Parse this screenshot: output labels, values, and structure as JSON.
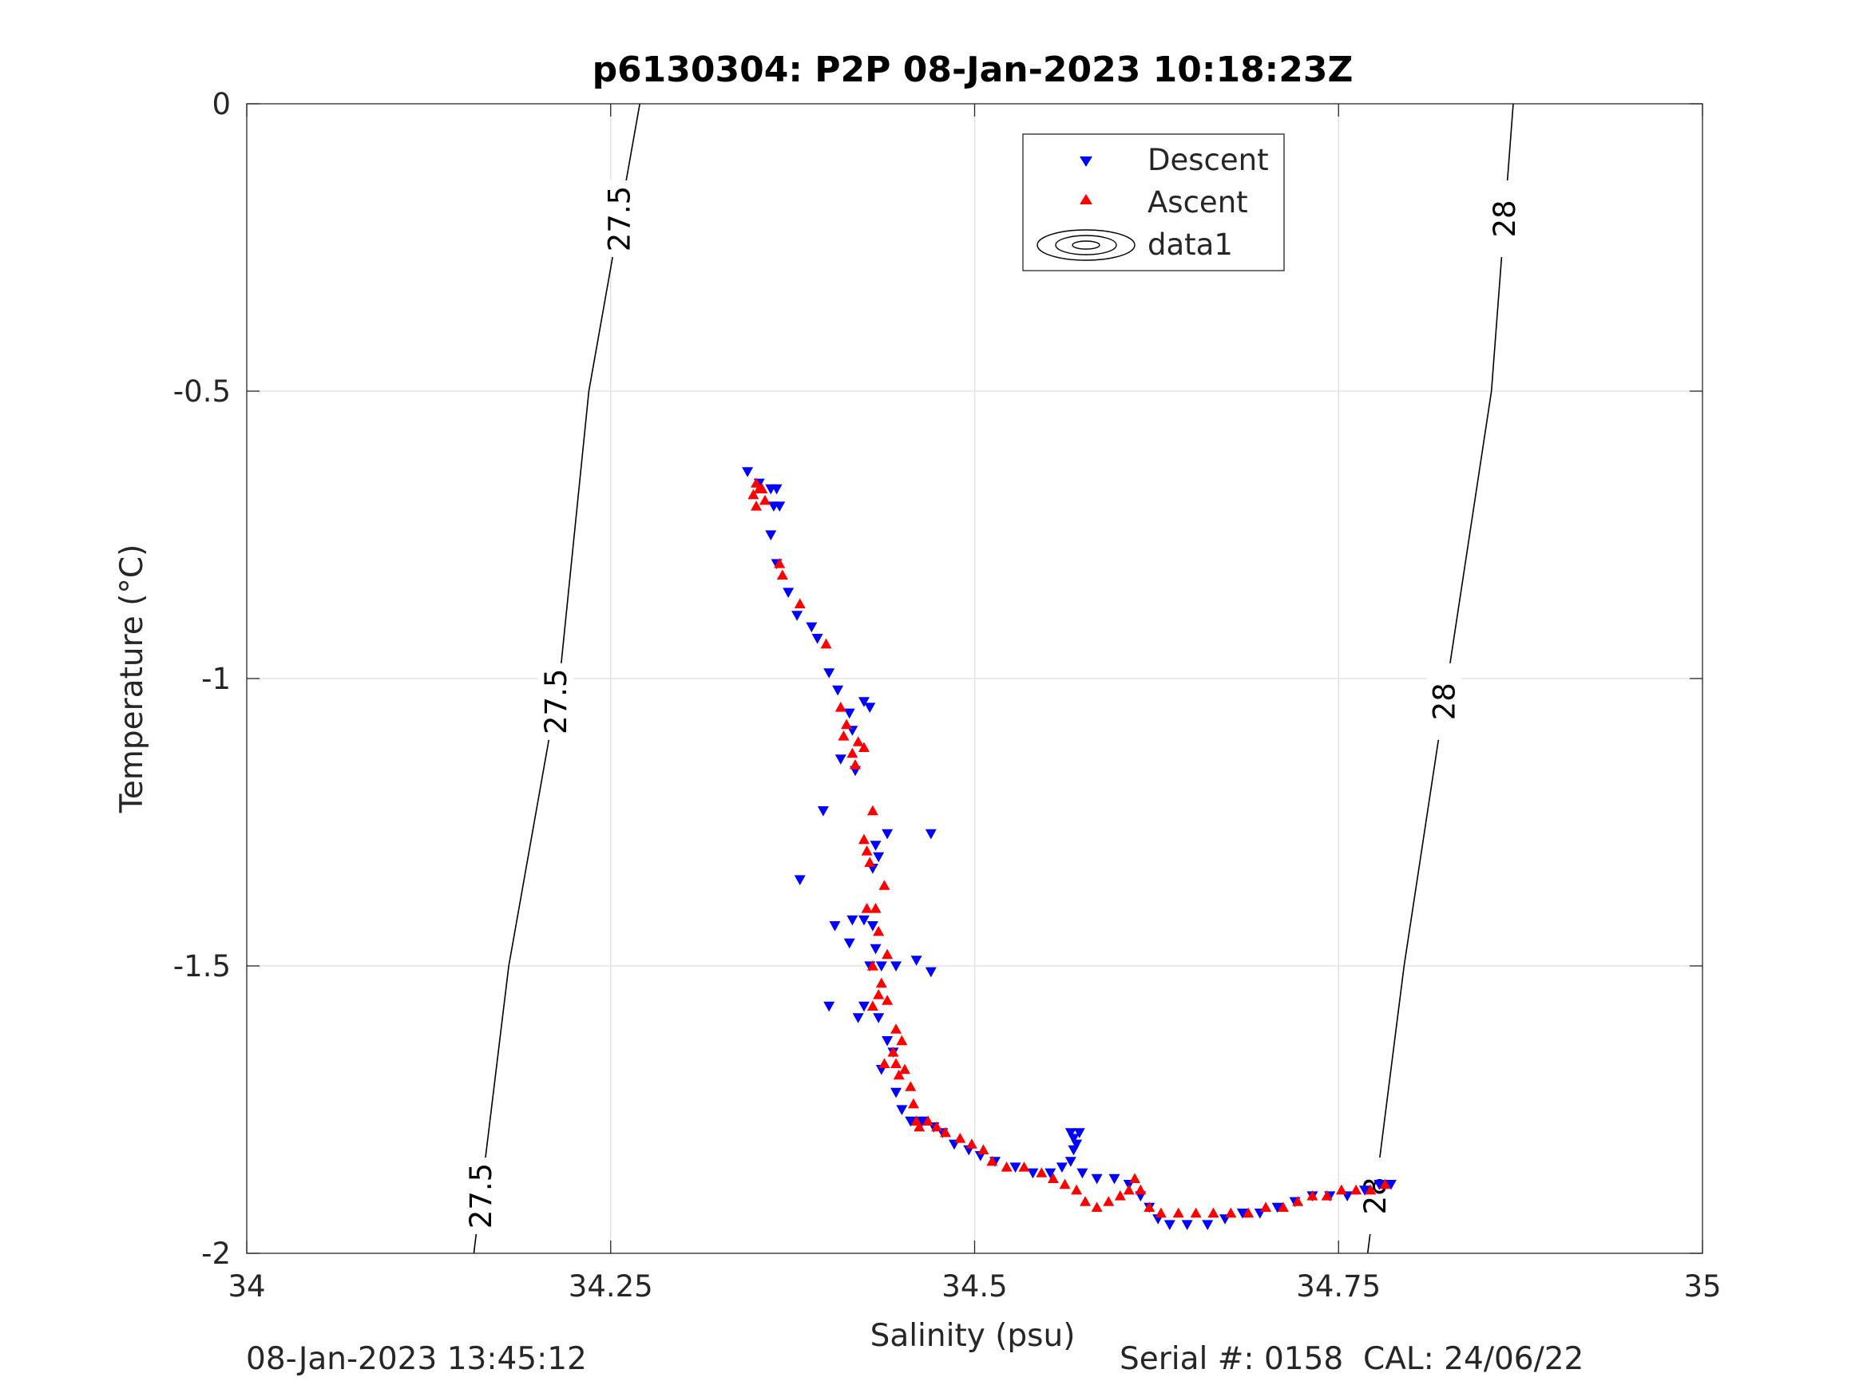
{
  "chart_data": {
    "type": "scatter",
    "title": "p6130304: P2P 08-Jan-2023 10:18:23Z",
    "xlabel": "Salinity (psu)",
    "ylabel": "Temperature (°C)",
    "xlim": [
      34,
      35
    ],
    "ylim": [
      -2,
      0
    ],
    "xticks": [
      34,
      34.25,
      34.5,
      34.75,
      35
    ],
    "xtick_labels": [
      "34",
      "34.25",
      "34.5",
      "34.75",
      "35"
    ],
    "yticks": [
      -2,
      -1.5,
      -1,
      -0.5,
      0
    ],
    "ytick_labels": [
      "-2",
      "-1.5",
      "-1",
      "-0.5",
      "0"
    ],
    "grid": true,
    "legend_position": "top-center",
    "legend": [
      {
        "label": "Descent",
        "marker": "triangle-down",
        "color": "#0000ff"
      },
      {
        "label": "Ascent",
        "marker": "triangle-up",
        "color": "#ff0000"
      },
      {
        "label": "data1",
        "marker": "contour-ellipses",
        "color": "#000000"
      }
    ],
    "contours": [
      {
        "label": "27.5",
        "points": [
          [
            34.156,
            -2
          ],
          [
            34.18,
            -1.5
          ],
          [
            34.215,
            -1
          ],
          [
            34.235,
            -0.5
          ],
          [
            34.27,
            0
          ]
        ]
      },
      {
        "label": "28",
        "points": [
          [
            34.77,
            -2
          ],
          [
            34.795,
            -1.5
          ],
          [
            34.825,
            -1
          ],
          [
            34.855,
            -0.5
          ],
          [
            34.87,
            0
          ]
        ]
      }
    ],
    "series": [
      {
        "name": "Descent",
        "marker": "triangle-down",
        "color": "#0000ff",
        "points": [
          [
            34.344,
            -0.64
          ],
          [
            34.352,
            -0.66
          ],
          [
            34.36,
            -0.67
          ],
          [
            34.364,
            -0.67
          ],
          [
            34.362,
            -0.7
          ],
          [
            34.366,
            -0.7
          ],
          [
            34.36,
            -0.75
          ],
          [
            34.364,
            -0.8
          ],
          [
            34.372,
            -0.85
          ],
          [
            34.378,
            -0.89
          ],
          [
            34.388,
            -0.91
          ],
          [
            34.392,
            -0.93
          ],
          [
            34.4,
            -0.99
          ],
          [
            34.406,
            -1.02
          ],
          [
            34.414,
            -1.06
          ],
          [
            34.424,
            -1.04
          ],
          [
            34.428,
            -1.05
          ],
          [
            34.416,
            -1.09
          ],
          [
            34.408,
            -1.14
          ],
          [
            34.418,
            -1.16
          ],
          [
            34.396,
            -1.23
          ],
          [
            34.44,
            -1.27
          ],
          [
            34.47,
            -1.27
          ],
          [
            34.432,
            -1.29
          ],
          [
            34.434,
            -1.31
          ],
          [
            34.43,
            -1.33
          ],
          [
            34.38,
            -1.35
          ],
          [
            34.416,
            -1.42
          ],
          [
            34.424,
            -1.42
          ],
          [
            34.404,
            -1.43
          ],
          [
            34.43,
            -1.43
          ],
          [
            34.414,
            -1.46
          ],
          [
            34.432,
            -1.47
          ],
          [
            34.428,
            -1.5
          ],
          [
            34.436,
            -1.5
          ],
          [
            34.446,
            -1.5
          ],
          [
            34.46,
            -1.49
          ],
          [
            34.47,
            -1.51
          ],
          [
            34.4,
            -1.57
          ],
          [
            34.424,
            -1.57
          ],
          [
            34.42,
            -1.59
          ],
          [
            34.434,
            -1.59
          ],
          [
            34.44,
            -1.63
          ],
          [
            34.444,
            -1.65
          ],
          [
            34.436,
            -1.68
          ],
          [
            34.446,
            -1.72
          ],
          [
            34.45,
            -1.75
          ],
          [
            34.456,
            -1.77
          ],
          [
            34.464,
            -1.77
          ],
          [
            34.472,
            -1.78
          ],
          [
            34.478,
            -1.79
          ],
          [
            34.486,
            -1.81
          ],
          [
            34.496,
            -1.82
          ],
          [
            34.504,
            -1.83
          ],
          [
            34.514,
            -1.84
          ],
          [
            34.528,
            -1.85
          ],
          [
            34.54,
            -1.86
          ],
          [
            34.552,
            -1.86
          ],
          [
            34.56,
            -1.85
          ],
          [
            34.566,
            -1.84
          ],
          [
            34.568,
            -1.82
          ],
          [
            34.57,
            -1.81
          ],
          [
            34.566,
            -1.79
          ],
          [
            34.572,
            -1.79
          ],
          [
            34.568,
            -1.8
          ],
          [
            34.574,
            -1.86
          ],
          [
            34.584,
            -1.87
          ],
          [
            34.596,
            -1.87
          ],
          [
            34.606,
            -1.88
          ],
          [
            34.614,
            -1.9
          ],
          [
            34.62,
            -1.92
          ],
          [
            34.626,
            -1.94
          ],
          [
            34.634,
            -1.95
          ],
          [
            34.646,
            -1.95
          ],
          [
            34.66,
            -1.95
          ],
          [
            34.672,
            -1.94
          ],
          [
            34.684,
            -1.93
          ],
          [
            34.696,
            -1.93
          ],
          [
            34.708,
            -1.92
          ],
          [
            34.72,
            -1.91
          ],
          [
            34.732,
            -1.9
          ],
          [
            34.744,
            -1.9
          ],
          [
            34.756,
            -1.9
          ],
          [
            34.768,
            -1.89
          ],
          [
            34.778,
            -1.88
          ],
          [
            34.786,
            -1.88
          ]
        ]
      },
      {
        "name": "Ascent",
        "marker": "triangle-up",
        "color": "#ff0000",
        "points": [
          [
            34.35,
            -0.66
          ],
          [
            34.354,
            -0.67
          ],
          [
            34.348,
            -0.68
          ],
          [
            34.356,
            -0.69
          ],
          [
            34.35,
            -0.7
          ],
          [
            34.352,
            -0.67
          ],
          [
            34.366,
            -0.8
          ],
          [
            34.368,
            -0.82
          ],
          [
            34.38,
            -0.87
          ],
          [
            34.398,
            -0.94
          ],
          [
            34.408,
            -1.05
          ],
          [
            34.412,
            -1.08
          ],
          [
            34.41,
            -1.1
          ],
          [
            34.42,
            -1.11
          ],
          [
            34.416,
            -1.13
          ],
          [
            34.418,
            -1.15
          ],
          [
            34.424,
            -1.12
          ],
          [
            34.43,
            -1.23
          ],
          [
            34.424,
            -1.28
          ],
          [
            34.426,
            -1.3
          ],
          [
            34.428,
            -1.32
          ],
          [
            34.438,
            -1.36
          ],
          [
            34.426,
            -1.4
          ],
          [
            34.432,
            -1.4
          ],
          [
            34.434,
            -1.44
          ],
          [
            34.44,
            -1.48
          ],
          [
            34.43,
            -1.5
          ],
          [
            34.436,
            -1.53
          ],
          [
            34.434,
            -1.55
          ],
          [
            34.44,
            -1.56
          ],
          [
            34.43,
            -1.57
          ],
          [
            34.446,
            -1.61
          ],
          [
            34.45,
            -1.63
          ],
          [
            34.444,
            -1.65
          ],
          [
            34.438,
            -1.67
          ],
          [
            34.446,
            -1.67
          ],
          [
            34.452,
            -1.68
          ],
          [
            34.448,
            -1.69
          ],
          [
            34.456,
            -1.71
          ],
          [
            34.458,
            -1.74
          ],
          [
            34.46,
            -1.77
          ],
          [
            34.462,
            -1.78
          ],
          [
            34.468,
            -1.77
          ],
          [
            34.474,
            -1.78
          ],
          [
            34.48,
            -1.79
          ],
          [
            34.49,
            -1.8
          ],
          [
            34.498,
            -1.81
          ],
          [
            34.506,
            -1.82
          ],
          [
            34.512,
            -1.84
          ],
          [
            34.522,
            -1.85
          ],
          [
            34.534,
            -1.85
          ],
          [
            34.546,
            -1.86
          ],
          [
            34.554,
            -1.87
          ],
          [
            34.562,
            -1.88
          ],
          [
            34.57,
            -1.89
          ],
          [
            34.576,
            -1.91
          ],
          [
            34.584,
            -1.92
          ],
          [
            34.592,
            -1.91
          ],
          [
            34.6,
            -1.9
          ],
          [
            34.606,
            -1.89
          ],
          [
            34.61,
            -1.87
          ],
          [
            34.614,
            -1.89
          ],
          [
            34.62,
            -1.92
          ],
          [
            34.628,
            -1.93
          ],
          [
            34.64,
            -1.93
          ],
          [
            34.652,
            -1.93
          ],
          [
            34.664,
            -1.93
          ],
          [
            34.676,
            -1.93
          ],
          [
            34.688,
            -1.93
          ],
          [
            34.7,
            -1.92
          ],
          [
            34.712,
            -1.92
          ],
          [
            34.722,
            -1.91
          ],
          [
            34.732,
            -1.9
          ],
          [
            34.742,
            -1.9
          ],
          [
            34.752,
            -1.89
          ],
          [
            34.762,
            -1.89
          ],
          [
            34.772,
            -1.89
          ],
          [
            34.782,
            -1.88
          ]
        ]
      }
    ]
  },
  "footer": {
    "left": "08-Jan-2023 13:45:12",
    "right": "Serial #: 0158  CAL: 24/06/22"
  }
}
